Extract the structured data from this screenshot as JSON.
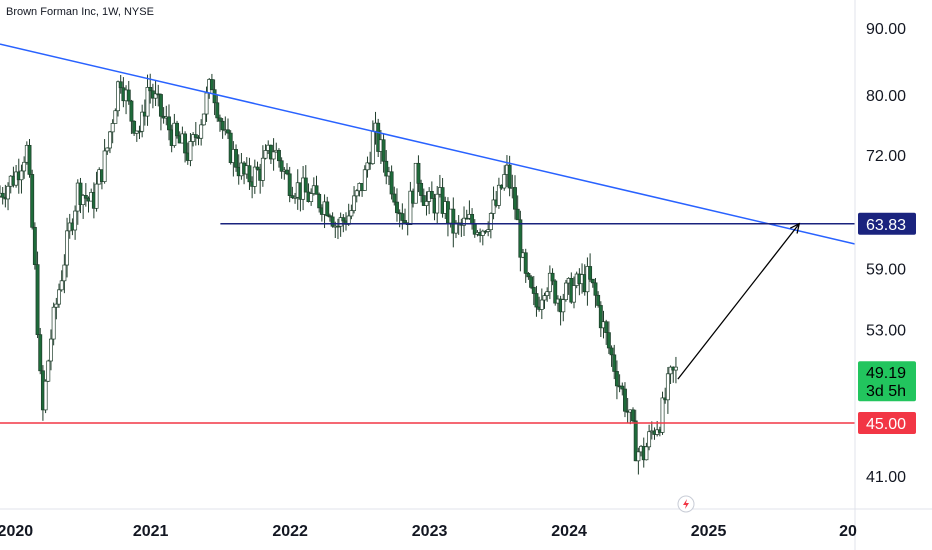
{
  "header": {
    "title": "Brown Forman Inc, 1W, NYSE"
  },
  "colors": {
    "up": "#26a69a",
    "down": "#ef5350",
    "candle_body": "#1e6b3a",
    "trendline": "#2962ff",
    "support": "#f23645",
    "level": "#1a237e",
    "price_badge": "#22c55e",
    "axis_text": "#131722"
  },
  "chart_data": {
    "type": "candlestick",
    "title": "Brown Forman Inc, 1W, NYSE",
    "xlabel": "",
    "ylabel": "",
    "x_ticks": [
      "2020",
      "2021",
      "2022",
      "2023",
      "2024",
      "2025",
      "20"
    ],
    "y_ticks": [
      "90.00",
      "80.00",
      "72.00",
      "63.83",
      "59.00",
      "53.00",
      "49.19",
      "45.00",
      "41.00"
    ],
    "y_scale": "log",
    "ylim": [
      38.5,
      96
    ],
    "xlim": [
      2019.92,
      2026.05
    ],
    "grid": false,
    "current_price": {
      "value": "49.19",
      "countdown": "3d 5h"
    },
    "levels": [
      {
        "name": "target",
        "value": 63.83,
        "label": "63.83",
        "from": 2021.5,
        "to": 2026.05
      },
      {
        "name": "support",
        "value": 45.0,
        "label": "45.00",
        "from": 2019.92,
        "to": 2026.05
      }
    ],
    "trendline": {
      "points": [
        [
          2019.92,
          87.5
        ],
        [
          2026.05,
          61.6
        ]
      ]
    },
    "projection_arrow": {
      "points": [
        [
          2024.78,
          48.6
        ],
        [
          2025.65,
          63.83
        ]
      ]
    },
    "price_path": [
      [
        2019.92,
        67.0
      ],
      [
        2020.05,
        69.5
      ],
      [
        2020.13,
        73.0
      ],
      [
        2020.2,
        56.0
      ],
      [
        2020.24,
        45.0
      ],
      [
        2020.3,
        52.0
      ],
      [
        2020.4,
        60.0
      ],
      [
        2020.5,
        68.0
      ],
      [
        2020.6,
        66.0
      ],
      [
        2020.7,
        72.0
      ],
      [
        2020.8,
        83.0
      ],
      [
        2020.88,
        77.0
      ],
      [
        2020.95,
        75.0
      ],
      [
        2021.0,
        81.5
      ],
      [
        2021.1,
        77.0
      ],
      [
        2021.2,
        74.0
      ],
      [
        2021.3,
        72.0
      ],
      [
        2021.4,
        78.0
      ],
      [
        2021.46,
        82.0
      ],
      [
        2021.55,
        74.0
      ],
      [
        2021.7,
        69.0
      ],
      [
        2021.8,
        70.0
      ],
      [
        2021.9,
        73.0
      ],
      [
        2022.0,
        69.0
      ],
      [
        2022.15,
        67.0
      ],
      [
        2022.3,
        66.0
      ],
      [
        2022.35,
        63.5
      ],
      [
        2022.45,
        65.0
      ],
      [
        2022.55,
        69.0
      ],
      [
        2022.62,
        75.0
      ],
      [
        2022.7,
        71.0
      ],
      [
        2022.8,
        66.0
      ],
      [
        2022.85,
        64.0
      ],
      [
        2022.93,
        70.0
      ],
      [
        2023.0,
        66.0
      ],
      [
        2023.1,
        66.5
      ],
      [
        2023.2,
        63.0
      ],
      [
        2023.3,
        64.0
      ],
      [
        2023.4,
        63.5
      ],
      [
        2023.5,
        66.0
      ],
      [
        2023.57,
        70.0
      ],
      [
        2023.63,
        66.0
      ],
      [
        2023.7,
        58.0
      ],
      [
        2023.78,
        55.0
      ],
      [
        2023.85,
        58.0
      ],
      [
        2023.95,
        56.0
      ],
      [
        2024.05,
        57.0
      ],
      [
        2024.15,
        58.0
      ],
      [
        2024.2,
        56.5
      ],
      [
        2024.3,
        51.5
      ],
      [
        2024.4,
        47.5
      ],
      [
        2024.45,
        45.5
      ],
      [
        2024.5,
        43.0
      ],
      [
        2024.55,
        42.5
      ],
      [
        2024.62,
        44.5
      ],
      [
        2024.68,
        45.5
      ],
      [
        2024.74,
        48.5
      ],
      [
        2024.78,
        49.19
      ]
    ]
  }
}
